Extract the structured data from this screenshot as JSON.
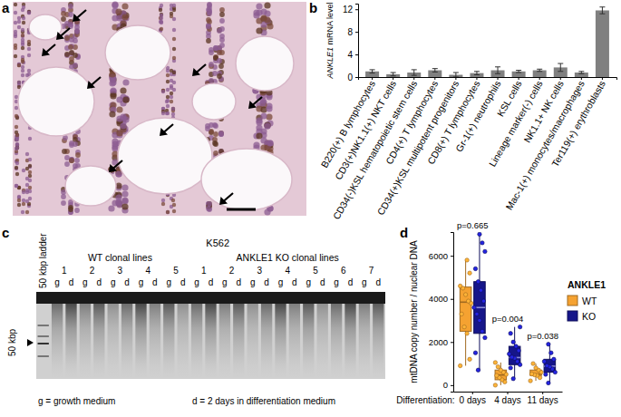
{
  "panel_labels": [
    "a",
    "b",
    "c",
    "d"
  ],
  "chart_data": [
    {
      "type": "bar",
      "y_label": "ANKLE1 mRNA level",
      "categories": [
        "B220(+) B lymphocytes",
        "CD3(+)NK1.1(+) NKT cells",
        "CD34(-)KSL hematopoietic stem cells",
        "CD4(+) T lymphocytes",
        "CD34(+)KSL multipotent progenitors",
        "CD8(+) T lymphocytes",
        "Gr-1(+) neutrophils",
        "KSL cells",
        "Lineage marker(-) cells",
        "NK1.1+ NK cells",
        "Mac-1(+) monocytes/macrophages",
        "Ter119(+) erythroblasts"
      ],
      "values": [
        1.0,
        0.5,
        0.8,
        1.2,
        0.4,
        0.7,
        1.2,
        1.0,
        1.2,
        1.7,
        0.8,
        11.8
      ],
      "errors": [
        0.3,
        0.3,
        0.5,
        0.3,
        0.4,
        0.3,
        0.6,
        0.2,
        0.2,
        0.7,
        0.2,
        0.6
      ],
      "color": "#808080",
      "ylim": [
        0,
        13
      ],
      "yticks": [
        0,
        4,
        8,
        12
      ]
    },
    {
      "type": "box",
      "x_label": "Differentiation:",
      "y_label": "mtDNA copy number / nuclear DNA",
      "categories": [
        "0 days",
        "4 days",
        "11 days"
      ],
      "ylim": [
        -300,
        7100
      ],
      "yticks": [
        0,
        2000,
        4000,
        6000
      ],
      "legend": "right",
      "legend_title": "ANKLE1",
      "annotations": [
        "p=0.665",
        "p=0.004",
        "p=0.038"
      ],
      "series": [
        {
          "name": "WT",
          "color": "#f5a231",
          "min": [
            900,
            0,
            200
          ],
          "q1": [
            2500,
            250,
            450
          ],
          "median": [
            3850,
            470,
            510
          ],
          "q3": [
            4550,
            700,
            700
          ],
          "max": [
            5800,
            1050,
            1000
          ],
          "points": [
            [
              900,
              1200,
              2400,
              2700,
              3300,
              3800,
              3900,
              4200,
              4500,
              4600,
              5200,
              5800
            ],
            [
              0,
              150,
              250,
              350,
              450,
              500,
              600,
              700,
              850,
              1050
            ],
            [
              200,
              350,
              450,
              480,
              520,
              600,
              700,
              800,
              1000
            ]
          ]
        },
        {
          "name": "KO",
          "color": "#16168a",
          "min": [
            700,
            300,
            100
          ],
          "q1": [
            2400,
            950,
            600
          ],
          "median": [
            3600,
            1280,
            880
          ],
          "q3": [
            4800,
            1800,
            1200
          ],
          "max": [
            7000,
            2700,
            1900
          ],
          "points": [
            [
              700,
              1500,
              2200,
              2500,
              3000,
              3300,
              3600,
              3900,
              4400,
              4800,
              5400,
              6200,
              6600,
              7000
            ],
            [
              300,
              800,
              950,
              1100,
              1250,
              1300,
              1450,
              1600,
              1800,
              2000,
              2400,
              2700
            ],
            [
              100,
              500,
              600,
              750,
              850,
              900,
              1100,
              1200,
              1500,
              1900
            ]
          ]
        }
      ]
    }
  ],
  "gel": {
    "cell_line": "K562",
    "ladder_label": "50 kbp ladder",
    "marker_label": "50 kbp",
    "groups": [
      {
        "label": "WT clonal lines",
        "clones": [
          "1",
          "2",
          "3",
          "4",
          "5"
        ]
      },
      {
        "label": "ANKLE1 KO clonal lines",
        "clones": [
          "1",
          "2",
          "3",
          "4",
          "5",
          "6",
          "7"
        ]
      }
    ],
    "conditions": [
      "g",
      "d"
    ],
    "notes": [
      "g = growth medium",
      "d = 2 days in differentiation medium"
    ]
  }
}
